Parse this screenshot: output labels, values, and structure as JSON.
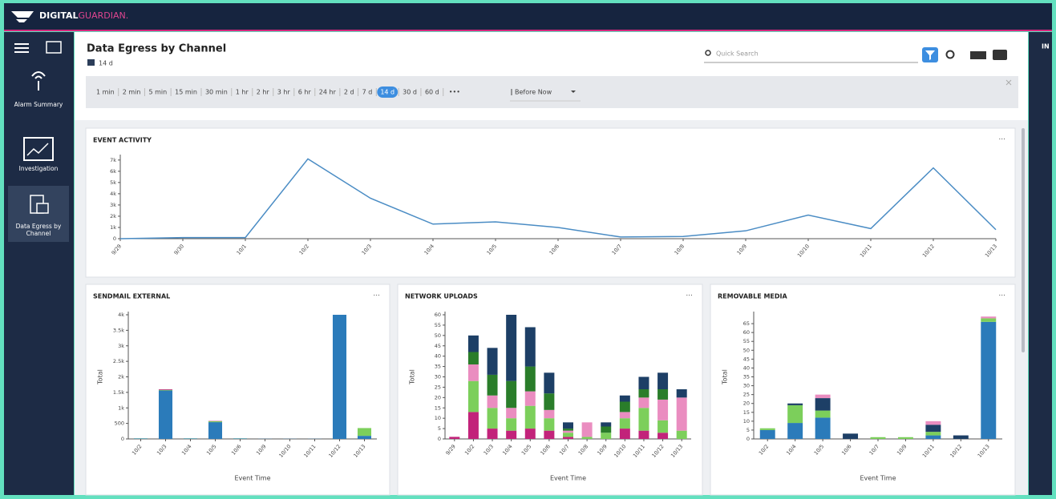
{
  "header": {
    "logo_a": "DIGITAL",
    "logo_b": "GUARDIAN."
  },
  "sidebar": {
    "items": [
      "Alarm Summary",
      "Investigation",
      "Data Egress by Channel"
    ],
    "active_index": 2
  },
  "page": {
    "title": "Data Egress by Channel",
    "range": "14 d",
    "search_placeholder": "Quick Search",
    "time_options": [
      "1 min",
      "2 min",
      "5 min",
      "15 min",
      "30 min",
      "1 hr",
      "2 hr",
      "3 hr",
      "6 hr",
      "24 hr",
      "2 d",
      "7 d",
      "14 d",
      "30 d",
      "60 d"
    ],
    "selected_index": 12,
    "more": "•••",
    "relative": "Before Now"
  },
  "right_label": "IN",
  "panels": [
    {
      "title": "EVENT ACTIVITY",
      "menu": "···",
      "chart_data": {
        "type": "line",
        "color": "#4a8cc4",
        "categories": [
          "9/29",
          "9/30",
          "10/1",
          "10/2",
          "10/3",
          "10/4",
          "10/5",
          "10/6",
          "10/7",
          "10/8",
          "10/9",
          "10/10",
          "10/11",
          "10/12",
          "10/13"
        ],
        "values": [
          0,
          100,
          100,
          7100,
          3600,
          1300,
          1500,
          1000,
          150,
          200,
          700,
          2100,
          900,
          6300,
          800
        ],
        "ylim": [
          0,
          7200
        ],
        "yticks": [
          0,
          {
            "value": 1000,
            "label": "1k"
          },
          {
            "value": 2000,
            "label": "2k"
          },
          {
            "value": 3000,
            "label": "3k"
          },
          {
            "value": 4000,
            "label": "4k"
          },
          {
            "value": 5000,
            "label": "5k"
          },
          {
            "value": 6000,
            "label": "6k"
          },
          {
            "value": 7000,
            "label": "7k"
          }
        ]
      }
    },
    {
      "title": "SENDMAIL EXTERNAL",
      "menu": "···",
      "chart_data": {
        "type": "bar",
        "xlabel": "Event Time",
        "ylabel": "Total",
        "categories": [
          "10/2",
          "10/3",
          "10/4",
          "10/5",
          "10/6",
          "10/9",
          "10/10",
          "10/11",
          "10/12",
          "10/13"
        ],
        "series": [
          {
            "color": "#2b7bba",
            "values": [
              15,
              1560,
              15,
              540,
              15,
              5,
              5,
              5,
              4000,
              100
            ]
          },
          {
            "color": "#7ccf5b",
            "values": [
              5,
              20,
              5,
              30,
              5,
              0,
              0,
              0,
              0,
              250
            ]
          },
          {
            "color": "#c2237a",
            "values": [
              0,
              20,
              0,
              10,
              0,
              0,
              0,
              0,
              0,
              0
            ]
          }
        ],
        "ylim": [
          0,
          4000
        ],
        "yticks": [
          0,
          500,
          {
            "value": 1000,
            "label": "1k"
          },
          {
            "value": 1500,
            "label": "1.5k"
          },
          {
            "value": 2000,
            "label": "2k"
          },
          {
            "value": 2500,
            "label": "2.5k"
          },
          {
            "value": 3000,
            "label": "3k"
          },
          {
            "value": 3500,
            "label": "3.5k"
          },
          {
            "value": 4000,
            "label": "4k"
          }
        ]
      }
    },
    {
      "title": "NETWORK UPLOADS",
      "menu": "···",
      "chart_data": {
        "type": "bar",
        "xlabel": "Event Time",
        "ylabel": "Total",
        "categories": [
          "9/29",
          "10/2",
          "10/3",
          "10/4",
          "10/5",
          "10/6",
          "10/7",
          "10/8",
          "10/9",
          "10/10",
          "10/11",
          "10/12",
          "10/13"
        ],
        "series": [
          {
            "color": "#c2237a",
            "values": [
              1,
              13,
              5,
              4,
              5,
              4,
              1,
              0,
              0,
              5,
              4,
              3,
              0
            ]
          },
          {
            "color": "#7ccf5b",
            "values": [
              0,
              15,
              10,
              6,
              11,
              6,
              2,
              1,
              3,
              5,
              11,
              6,
              4
            ]
          },
          {
            "color": "#ea8dc0",
            "values": [
              0,
              8,
              6,
              5,
              7,
              4,
              1,
              7,
              0,
              3,
              5,
              10,
              16
            ]
          },
          {
            "color": "#2a7d2a",
            "values": [
              0,
              6,
              10,
              13,
              12,
              8,
              1,
              0,
              3,
              5,
              4,
              5,
              0
            ]
          },
          {
            "color": "#1d3f66",
            "values": [
              0,
              8,
              13,
              32,
              19,
              10,
              3,
              0,
              2,
              3,
              6,
              8,
              4
            ]
          }
        ],
        "ylim": [
          0,
          60
        ],
        "yticks": [
          0,
          5,
          10,
          15,
          20,
          25,
          30,
          35,
          40,
          45,
          50,
          55,
          60
        ]
      }
    },
    {
      "title": "REMOVABLE MEDIA",
      "menu": "···",
      "chart_data": {
        "type": "bar",
        "xlabel": "Event Time",
        "ylabel": "Total",
        "categories": [
          "10/2",
          "10/4",
          "10/5",
          "10/6",
          "10/7",
          "10/9",
          "10/11",
          "10/12",
          "10/13"
        ],
        "series": [
          {
            "color": "#2b7bba",
            "values": [
              5,
              9,
              12,
              0,
              0,
              0,
              2,
              0,
              66
            ]
          },
          {
            "color": "#7ccf5b",
            "values": [
              1,
              10,
              4,
              0,
              1,
              1,
              2,
              0,
              2
            ]
          },
          {
            "color": "#1d3f66",
            "values": [
              0,
              1,
              7,
              3,
              0,
              0,
              4,
              2,
              0
            ]
          },
          {
            "color": "#ea8dc0",
            "values": [
              0,
              0,
              2,
              0,
              0,
              0,
              2,
              0,
              1
            ]
          }
        ],
        "ylim": [
          0,
          70
        ],
        "yticks": [
          0,
          5,
          10,
          15,
          20,
          25,
          30,
          35,
          40,
          45,
          50,
          55,
          60,
          65
        ]
      }
    }
  ]
}
